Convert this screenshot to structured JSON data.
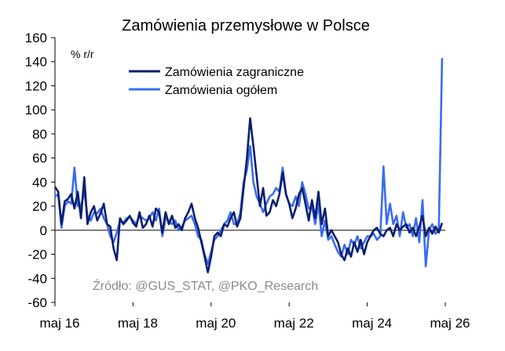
{
  "chart_data": {
    "type": "line",
    "title": "Zamówienia przemysłowe w Polsce",
    "ylabel": "% r/r",
    "source": "Źródło: @GUS_STAT, @PKO_Research",
    "ylim": [
      -60,
      160
    ],
    "yticks": [
      -60,
      -40,
      -20,
      0,
      20,
      40,
      60,
      80,
      100,
      120,
      140,
      160
    ],
    "xlim": [
      "2016-05",
      "2026-05"
    ],
    "xticks": [
      {
        "x": "2016-05",
        "label": "maj 16"
      },
      {
        "x": "2018-05",
        "label": "maj 18"
      },
      {
        "x": "2020-05",
        "label": "maj 20"
      },
      {
        "x": "2022-05",
        "label": "maj 22"
      },
      {
        "x": "2024-05",
        "label": "maj 24"
      },
      {
        "x": "2026-05",
        "label": "maj 26"
      }
    ],
    "legend": "top-left",
    "grid": false,
    "series": [
      {
        "name": "Zamówienia zagraniczne",
        "color": "#0b1f6e",
        "points": [
          [
            "2016-05",
            36
          ],
          [
            "2016-06",
            32
          ],
          [
            "2016-07",
            5
          ],
          [
            "2016-08",
            24
          ],
          [
            "2016-09",
            26
          ],
          [
            "2016-10",
            30
          ],
          [
            "2016-11",
            18
          ],
          [
            "2016-12",
            32
          ],
          [
            "2017-01",
            10
          ],
          [
            "2017-02",
            44
          ],
          [
            "2017-03",
            5
          ],
          [
            "2017-04",
            15
          ],
          [
            "2017-05",
            20
          ],
          [
            "2017-06",
            8
          ],
          [
            "2017-07",
            14
          ],
          [
            "2017-08",
            22
          ],
          [
            "2017-09",
            5
          ],
          [
            "2017-10",
            3
          ],
          [
            "2017-11",
            -15
          ],
          [
            "2017-12",
            -25
          ],
          [
            "2018-01",
            10
          ],
          [
            "2018-02",
            5
          ],
          [
            "2018-03",
            8
          ],
          [
            "2018-04",
            12
          ],
          [
            "2018-05",
            6
          ],
          [
            "2018-06",
            3
          ],
          [
            "2018-07",
            15
          ],
          [
            "2018-08",
            2
          ],
          [
            "2018-09",
            5
          ],
          [
            "2018-10",
            12
          ],
          [
            "2018-11",
            3
          ],
          [
            "2018-12",
            18
          ],
          [
            "2019-01",
            15
          ],
          [
            "2019-02",
            -2
          ],
          [
            "2019-03",
            15
          ],
          [
            "2019-04",
            5
          ],
          [
            "2019-05",
            12
          ],
          [
            "2019-06",
            2
          ],
          [
            "2019-07",
            5
          ],
          [
            "2019-08",
            0
          ],
          [
            "2019-09",
            10
          ],
          [
            "2019-10",
            15
          ],
          [
            "2019-11",
            22
          ],
          [
            "2019-12",
            10
          ],
          [
            "2020-01",
            2
          ],
          [
            "2020-02",
            -10
          ],
          [
            "2020-03",
            -22
          ],
          [
            "2020-04",
            -35
          ],
          [
            "2020-05",
            -22
          ],
          [
            "2020-06",
            -5
          ],
          [
            "2020-07",
            -2
          ],
          [
            "2020-08",
            -5
          ],
          [
            "2020-09",
            5
          ],
          [
            "2020-10",
            3
          ],
          [
            "2020-11",
            10
          ],
          [
            "2020-12",
            15
          ],
          [
            "2021-01",
            3
          ],
          [
            "2021-02",
            10
          ],
          [
            "2021-03",
            35
          ],
          [
            "2021-04",
            60
          ],
          [
            "2021-05",
            93
          ],
          [
            "2021-06",
            70
          ],
          [
            "2021-07",
            45
          ],
          [
            "2021-08",
            20
          ],
          [
            "2021-09",
            35
          ],
          [
            "2021-10",
            12
          ],
          [
            "2021-11",
            15
          ],
          [
            "2021-12",
            25
          ],
          [
            "2022-01",
            20
          ],
          [
            "2022-02",
            30
          ],
          [
            "2022-03",
            48
          ],
          [
            "2022-04",
            30
          ],
          [
            "2022-05",
            22
          ],
          [
            "2022-06",
            10
          ],
          [
            "2022-07",
            18
          ],
          [
            "2022-08",
            30
          ],
          [
            "2022-09",
            35
          ],
          [
            "2022-10",
            22
          ],
          [
            "2022-11",
            8
          ],
          [
            "2022-12",
            25
          ],
          [
            "2023-01",
            10
          ],
          [
            "2023-02",
            32
          ],
          [
            "2023-03",
            5
          ],
          [
            "2023-04",
            18
          ],
          [
            "2023-05",
            -5
          ],
          [
            "2023-06",
            0
          ],
          [
            "2023-07",
            -5
          ],
          [
            "2023-08",
            -10
          ],
          [
            "2023-09",
            -20
          ],
          [
            "2023-10",
            -25
          ],
          [
            "2023-11",
            -15
          ],
          [
            "2023-12",
            -22
          ],
          [
            "2024-01",
            -10
          ],
          [
            "2024-02",
            -18
          ],
          [
            "2024-03",
            -8
          ],
          [
            "2024-04",
            -20
          ],
          [
            "2024-05",
            -10
          ],
          [
            "2024-06",
            -5
          ],
          [
            "2024-07",
            0
          ],
          [
            "2024-08",
            2
          ],
          [
            "2024-09",
            -3
          ],
          [
            "2024-10",
            -5
          ],
          [
            "2024-11",
            0
          ],
          [
            "2024-12",
            2
          ],
          [
            "2025-01",
            -5
          ],
          [
            "2025-02",
            5
          ],
          [
            "2025-03",
            0
          ],
          [
            "2025-04",
            3
          ],
          [
            "2025-05",
            5
          ],
          [
            "2025-06",
            -2
          ],
          [
            "2025-07",
            2
          ],
          [
            "2025-08",
            -5
          ],
          [
            "2025-09",
            3
          ],
          [
            "2025-10",
            12
          ],
          [
            "2025-11",
            -5
          ],
          [
            "2025-12",
            2
          ],
          [
            "2026-01",
            -3
          ],
          [
            "2026-02",
            3
          ],
          [
            "2026-03",
            -2
          ],
          [
            "2026-04",
            6
          ]
        ]
      },
      {
        "name": "Zamówienia ogółem",
        "color": "#3b6cf0",
        "points": [
          [
            "2016-05",
            28
          ],
          [
            "2016-06",
            30
          ],
          [
            "2016-07",
            2
          ],
          [
            "2016-08",
            20
          ],
          [
            "2016-09",
            24
          ],
          [
            "2016-10",
            22
          ],
          [
            "2016-11",
            52
          ],
          [
            "2016-12",
            20
          ],
          [
            "2017-01",
            20
          ],
          [
            "2017-02",
            32
          ],
          [
            "2017-03",
            12
          ],
          [
            "2017-04",
            8
          ],
          [
            "2017-05",
            15
          ],
          [
            "2017-06",
            14
          ],
          [
            "2017-07",
            18
          ],
          [
            "2017-08",
            10
          ],
          [
            "2017-09",
            5
          ],
          [
            "2017-10",
            -5
          ],
          [
            "2017-11",
            -10
          ],
          [
            "2017-12",
            -2
          ],
          [
            "2018-01",
            8
          ],
          [
            "2018-02",
            6
          ],
          [
            "2018-03",
            10
          ],
          [
            "2018-04",
            11
          ],
          [
            "2018-05",
            8
          ],
          [
            "2018-06",
            5
          ],
          [
            "2018-07",
            12
          ],
          [
            "2018-08",
            10
          ],
          [
            "2018-09",
            8
          ],
          [
            "2018-10",
            10
          ],
          [
            "2018-11",
            15
          ],
          [
            "2018-12",
            8
          ],
          [
            "2019-01",
            18
          ],
          [
            "2019-02",
            -5
          ],
          [
            "2019-03",
            10
          ],
          [
            "2019-04",
            8
          ],
          [
            "2019-05",
            5
          ],
          [
            "2019-06",
            8
          ],
          [
            "2019-07",
            0
          ],
          [
            "2019-08",
            3
          ],
          [
            "2019-09",
            8
          ],
          [
            "2019-10",
            10
          ],
          [
            "2019-11",
            12
          ],
          [
            "2019-12",
            5
          ],
          [
            "2020-01",
            -5
          ],
          [
            "2020-02",
            -8
          ],
          [
            "2020-03",
            -20
          ],
          [
            "2020-04",
            -28
          ],
          [
            "2020-05",
            -18
          ],
          [
            "2020-06",
            -8
          ],
          [
            "2020-07",
            -5
          ],
          [
            "2020-08",
            0
          ],
          [
            "2020-09",
            5
          ],
          [
            "2020-10",
            8
          ],
          [
            "2020-11",
            15
          ],
          [
            "2020-12",
            5
          ],
          [
            "2021-01",
            5
          ],
          [
            "2021-02",
            15
          ],
          [
            "2021-03",
            40
          ],
          [
            "2021-04",
            50
          ],
          [
            "2021-05",
            70
          ],
          [
            "2021-06",
            40
          ],
          [
            "2021-07",
            28
          ],
          [
            "2021-08",
            22
          ],
          [
            "2021-09",
            15
          ],
          [
            "2021-10",
            22
          ],
          [
            "2021-11",
            28
          ],
          [
            "2021-12",
            30
          ],
          [
            "2022-01",
            35
          ],
          [
            "2022-02",
            32
          ],
          [
            "2022-03",
            52
          ],
          [
            "2022-04",
            30
          ],
          [
            "2022-05",
            22
          ],
          [
            "2022-06",
            20
          ],
          [
            "2022-07",
            28
          ],
          [
            "2022-08",
            20
          ],
          [
            "2022-09",
            40
          ],
          [
            "2022-10",
            30
          ],
          [
            "2022-11",
            18
          ],
          [
            "2022-12",
            20
          ],
          [
            "2023-01",
            5
          ],
          [
            "2023-02",
            22
          ],
          [
            "2023-03",
            -5
          ],
          [
            "2023-04",
            8
          ],
          [
            "2023-05",
            -8
          ],
          [
            "2023-06",
            -5
          ],
          [
            "2023-07",
            -12
          ],
          [
            "2023-08",
            -18
          ],
          [
            "2023-09",
            -22
          ],
          [
            "2023-10",
            -12
          ],
          [
            "2023-11",
            -20
          ],
          [
            "2023-12",
            -8
          ],
          [
            "2024-01",
            -12
          ],
          [
            "2024-02",
            -5
          ],
          [
            "2024-03",
            -15
          ],
          [
            "2024-04",
            -10
          ],
          [
            "2024-05",
            -5
          ],
          [
            "2024-06",
            -5
          ],
          [
            "2024-07",
            -3
          ],
          [
            "2024-08",
            -8
          ],
          [
            "2024-09",
            -5
          ],
          [
            "2024-10",
            53
          ],
          [
            "2024-11",
            5
          ],
          [
            "2024-12",
            22
          ],
          [
            "2025-01",
            5
          ],
          [
            "2025-02",
            12
          ],
          [
            "2025-03",
            -5
          ],
          [
            "2025-04",
            15
          ],
          [
            "2025-05",
            2
          ],
          [
            "2025-06",
            5
          ],
          [
            "2025-07",
            -5
          ],
          [
            "2025-08",
            10
          ],
          [
            "2025-09",
            -10
          ],
          [
            "2025-10",
            25
          ],
          [
            "2025-11",
            -30
          ],
          [
            "2025-12",
            0
          ],
          [
            "2026-01",
            5
          ],
          [
            "2026-02",
            -3
          ],
          [
            "2026-03",
            0
          ],
          [
            "2026-04",
            143
          ]
        ]
      }
    ]
  }
}
